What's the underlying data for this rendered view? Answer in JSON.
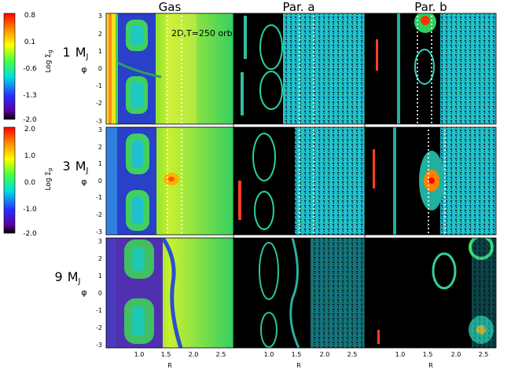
{
  "columns": [
    "Gas",
    "Par. a",
    "Par. b"
  ],
  "rows": [
    {
      "mass_num": "1",
      "mass_unit": "M",
      "mass_sub": "J"
    },
    {
      "mass_num": "3",
      "mass_unit": "M",
      "mass_sub": "J"
    },
    {
      "mass_num": "9",
      "mass_unit": "M",
      "mass_sub": "J"
    }
  ],
  "annotation": "2D,T=250 orb",
  "xlabel": "R",
  "ylabel": "φ",
  "x_ticks": [
    "1.0",
    "1.5",
    "2.0",
    "2.5"
  ],
  "y_ticks": [
    "3",
    "2",
    "1",
    "0",
    "-1",
    "-2",
    "-3"
  ],
  "colorbars": [
    {
      "label_main": "Log Σ",
      "label_sub": "g",
      "ticks": [
        "0.8",
        "0.1",
        "-0.6",
        "-1.3",
        "-2.0"
      ]
    },
    {
      "label_main": "Log Σ",
      "label_sub": "p",
      "ticks": [
        "2.0",
        "1.0",
        "0.0",
        "-1.0",
        "-2.0"
      ]
    }
  ]
}
